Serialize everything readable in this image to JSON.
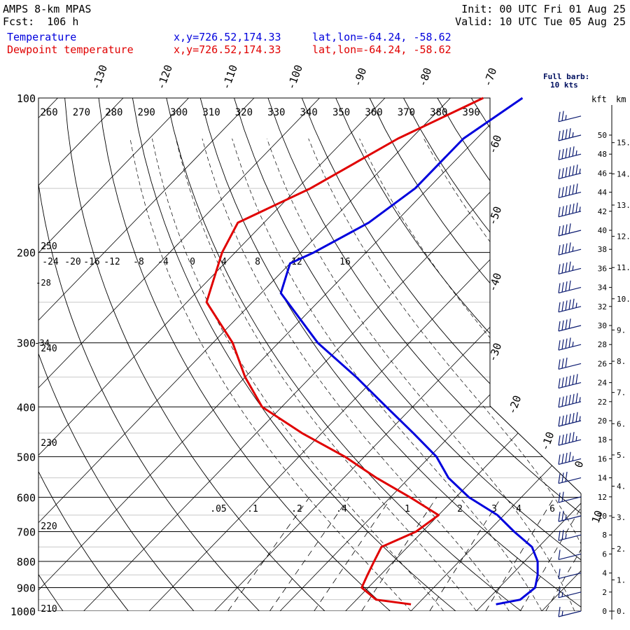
{
  "header": {
    "model": "AMPS 8-km MPAS",
    "forecast": "Fcst:  106 h",
    "init": "Init: 00 UTC Fri 01 Aug 25",
    "valid": "Valid: 10 UTC Tue 05 Aug 25",
    "temp_label": "Temperature",
    "dewpt_label": "Dewpoint temperature",
    "xy_readout": "x,y=726.52,174.33",
    "latlon_readout": "lat,lon=-64.24, -58.62",
    "barb_note_1": "Full barb:",
    "barb_note_2": "10 kts"
  },
  "colors": {
    "temperature": "#0000dd",
    "dewpoint": "#e00000",
    "grid": "#000000",
    "theta": "#000000",
    "header_text": "#000000"
  },
  "chart_data": {
    "type": "line",
    "title": "",
    "xlabel": "",
    "ylabel": "",
    "pressure_levels": [
      100,
      200,
      300,
      400,
      500,
      600,
      700,
      800,
      900,
      1000
    ],
    "pressure_tick_labels": [
      "100",
      "200",
      "300",
      "400",
      "500",
      "600",
      "700",
      "800",
      "900",
      "1000"
    ],
    "isotherm_labels": [
      "-130",
      "-120",
      "-110",
      "-100",
      "-90",
      "-80",
      "-70",
      "-60",
      "-50",
      "-40",
      "-30",
      "-20",
      "-10",
      "0",
      "10"
    ],
    "theta_labels_top": [
      "260",
      "270",
      "280",
      "290",
      "300",
      "310",
      "320",
      "330",
      "340",
      "350",
      "360",
      "370",
      "380",
      "390"
    ],
    "theta_labels_left": [
      "250",
      "240",
      "230",
      "220",
      "210"
    ],
    "mixing_ratio_labels_200": [
      "-24",
      "-20",
      "-16",
      "-12",
      "-8",
      "-4",
      "0",
      "4",
      "8",
      "12",
      "16"
    ],
    "mixing_ratio_labels_low": [
      ".05",
      ".1",
      ".2",
      ".4",
      "1",
      "2",
      "3",
      "4",
      "6"
    ],
    "left_misc_labels": [
      "-28",
      "-34"
    ],
    "series": [
      {
        "name": "Temperature",
        "points": [
          {
            "p": 100,
            "t": -79
          },
          {
            "p": 120,
            "t": -82
          },
          {
            "p": 150,
            "t": -82
          },
          {
            "p": 175,
            "t": -84
          },
          {
            "p": 200,
            "t": -88
          },
          {
            "p": 210,
            "t": -90
          },
          {
            "p": 240,
            "t": -87
          },
          {
            "p": 300,
            "t": -74
          },
          {
            "p": 350,
            "t": -63
          },
          {
            "p": 400,
            "t": -54
          },
          {
            "p": 450,
            "t": -46
          },
          {
            "p": 500,
            "t": -39
          },
          {
            "p": 550,
            "t": -34
          },
          {
            "p": 600,
            "t": -28
          },
          {
            "p": 650,
            "t": -21
          },
          {
            "p": 700,
            "t": -16
          },
          {
            "p": 750,
            "t": -11
          },
          {
            "p": 800,
            "t": -8
          },
          {
            "p": 850,
            "t": -6
          },
          {
            "p": 900,
            "t": -4.5
          },
          {
            "p": 950,
            "t": -5
          },
          {
            "p": 970,
            "t": -8
          }
        ]
      },
      {
        "name": "Dewpoint temperature",
        "points": [
          {
            "p": 100,
            "t": -85
          },
          {
            "p": 120,
            "t": -92
          },
          {
            "p": 150,
            "t": -98
          },
          {
            "p": 175,
            "t": -104
          },
          {
            "p": 200,
            "t": -102
          },
          {
            "p": 250,
            "t": -97
          },
          {
            "p": 300,
            "t": -87
          },
          {
            "p": 350,
            "t": -80
          },
          {
            "p": 400,
            "t": -73
          },
          {
            "p": 450,
            "t": -63
          },
          {
            "p": 500,
            "t": -53
          },
          {
            "p": 550,
            "t": -45
          },
          {
            "p": 600,
            "t": -37
          },
          {
            "p": 650,
            "t": -30
          },
          {
            "p": 700,
            "t": -31
          },
          {
            "p": 750,
            "t": -34
          },
          {
            "p": 800,
            "t": -33
          },
          {
            "p": 850,
            "t": -32
          },
          {
            "p": 900,
            "t": -31
          },
          {
            "p": 950,
            "t": -27
          },
          {
            "p": 970,
            "t": -21
          }
        ]
      }
    ],
    "wind_barbs": {
      "note": "Full barb: 10 kts",
      "levels_kft": [
        52,
        50,
        48,
        46,
        44,
        42,
        40,
        38,
        36,
        34,
        32,
        30,
        28,
        26,
        24,
        22,
        20,
        18,
        16,
        14,
        12,
        10,
        8,
        6,
        4,
        2,
        0
      ],
      "speed_kts": [
        15,
        35,
        45,
        55,
        60,
        55,
        40,
        35,
        35,
        40,
        45,
        40,
        35,
        30,
        60,
        55,
        55,
        45,
        35,
        30,
        20,
        15,
        15,
        10,
        10,
        5,
        5
      ]
    },
    "height_axis": {
      "kft_label": "kft",
      "km_label": "km",
      "kft_ticks": [
        "50",
        "48",
        "46",
        "44",
        "42",
        "40",
        "38",
        "36",
        "34",
        "32",
        "30",
        "28",
        "26",
        "24",
        "22",
        "20",
        "18",
        "16",
        "14",
        "12",
        "10",
        "8",
        "6",
        "4",
        "2",
        "0"
      ],
      "km_ticks": [
        "15",
        "14",
        "13",
        "12",
        "11",
        "10",
        "9",
        "8",
        "7",
        "6",
        "5",
        "4",
        "3",
        "2",
        "1",
        "0"
      ]
    }
  }
}
